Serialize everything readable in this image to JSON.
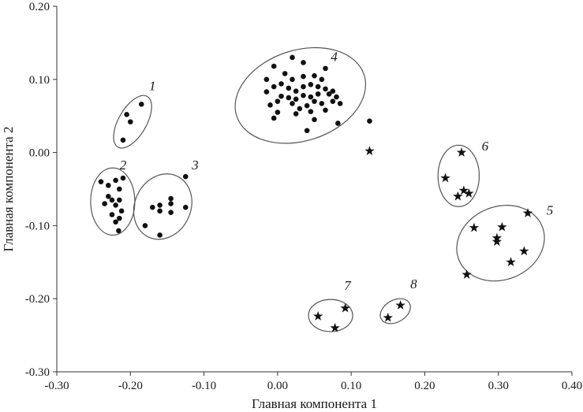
{
  "chart_data": {
    "type": "scatter",
    "xlabel": "Главная компонента 1",
    "ylabel": "Главная компонента 2",
    "xlim": [
      -0.3,
      0.4
    ],
    "ylim": [
      -0.3,
      0.2
    ],
    "xticks": [
      -0.3,
      -0.2,
      -0.1,
      0.0,
      0.1,
      0.2,
      0.3,
      0.4
    ],
    "yticks": [
      -0.3,
      -0.2,
      -0.1,
      0.0,
      0.1,
      0.2
    ],
    "xtick_labels": [
      "-0.30",
      "-0.20",
      "-0.10",
      "0.00",
      "0.10",
      "0.20",
      "0.30",
      "0.40"
    ],
    "ytick_labels": [
      "-0.30",
      "-0.20",
      "-0.10",
      "0.00",
      "0.10",
      "0.20"
    ],
    "grid": false,
    "series": [
      {
        "marker": "circle",
        "points": [
          [
            -0.21,
            0.017
          ],
          [
            -0.2,
            0.042
          ],
          [
            -0.205,
            0.052
          ],
          [
            -0.185,
            0.066
          ],
          [
            -0.24,
            -0.04
          ],
          [
            -0.23,
            -0.045
          ],
          [
            -0.22,
            -0.038
          ],
          [
            -0.21,
            -0.035
          ],
          [
            -0.215,
            -0.05
          ],
          [
            -0.23,
            -0.06
          ],
          [
            -0.225,
            -0.065
          ],
          [
            -0.215,
            -0.065
          ],
          [
            -0.235,
            -0.07
          ],
          [
            -0.22,
            -0.072
          ],
          [
            -0.212,
            -0.08
          ],
          [
            -0.225,
            -0.085
          ],
          [
            -0.215,
            -0.09
          ],
          [
            -0.22,
            -0.095
          ],
          [
            -0.216,
            -0.107
          ],
          [
            -0.125,
            -0.033
          ],
          [
            -0.145,
            -0.063
          ],
          [
            -0.145,
            -0.07
          ],
          [
            -0.16,
            -0.072
          ],
          [
            -0.17,
            -0.075
          ],
          [
            -0.16,
            -0.08
          ],
          [
            -0.125,
            -0.075
          ],
          [
            -0.145,
            -0.082
          ],
          [
            -0.18,
            -0.1
          ],
          [
            -0.16,
            -0.113
          ],
          [
            -0.015,
            0.1
          ],
          [
            -0.005,
            0.118
          ],
          [
            0.02,
            0.13
          ],
          [
            0.035,
            0.123
          ],
          [
            0.01,
            0.108
          ],
          [
            0.02,
            0.1
          ],
          [
            0.035,
            0.104
          ],
          [
            0.05,
            0.105
          ],
          [
            0.06,
            0.1
          ],
          [
            0.065,
            0.115
          ],
          [
            -0.015,
            0.083
          ],
          [
            -0.005,
            0.09
          ],
          [
            0.005,
            0.094
          ],
          [
            0.015,
            0.088
          ],
          [
            0.025,
            0.084
          ],
          [
            0.035,
            0.09
          ],
          [
            0.045,
            0.093
          ],
          [
            0.055,
            0.09
          ],
          [
            0.065,
            0.087
          ],
          [
            0.075,
            0.084
          ],
          [
            0.005,
            0.077
          ],
          [
            0.015,
            0.075
          ],
          [
            0.025,
            0.073
          ],
          [
            0.035,
            0.078
          ],
          [
            0.045,
            0.076
          ],
          [
            0.055,
            0.08
          ],
          [
            0.07,
            0.08
          ],
          [
            0.08,
            0.076
          ],
          [
            -0.01,
            0.065
          ],
          [
            0.0,
            0.07
          ],
          [
            0.02,
            0.067
          ],
          [
            0.03,
            0.06
          ],
          [
            0.04,
            0.064
          ],
          [
            0.05,
            0.07
          ],
          [
            0.06,
            0.067
          ],
          [
            0.075,
            0.07
          ],
          [
            0.085,
            0.067
          ],
          [
            0.0,
            0.055
          ],
          [
            0.025,
            0.053
          ],
          [
            0.045,
            0.056
          ],
          [
            0.065,
            0.058
          ],
          [
            -0.005,
            0.047
          ],
          [
            0.05,
            0.045
          ],
          [
            0.082,
            0.04
          ],
          [
            0.04,
            0.03
          ],
          [
            0.125,
            0.043
          ]
        ]
      },
      {
        "marker": "star",
        "points": [
          [
            0.125,
            0.002
          ],
          [
            0.25,
            0.0
          ],
          [
            0.228,
            -0.035
          ],
          [
            0.253,
            -0.052
          ],
          [
            0.26,
            -0.056
          ],
          [
            0.245,
            -0.06
          ],
          [
            0.34,
            -0.083
          ],
          [
            0.267,
            -0.103
          ],
          [
            0.305,
            -0.102
          ],
          [
            0.298,
            -0.117
          ],
          [
            0.298,
            -0.122
          ],
          [
            0.335,
            -0.135
          ],
          [
            0.317,
            -0.15
          ],
          [
            0.257,
            -0.167
          ],
          [
            0.055,
            -0.224
          ],
          [
            0.092,
            -0.213
          ],
          [
            0.078,
            -0.24
          ],
          [
            0.15,
            -0.226
          ],
          [
            0.167,
            -0.209
          ]
        ]
      }
    ],
    "clusters": [
      {
        "label": "1",
        "cx": -0.197,
        "cy": 0.042,
        "rx": 0.019,
        "ry": 0.04,
        "rotation": 30,
        "label_at": [
          -0.17,
          0.085
        ]
      },
      {
        "label": "2",
        "cx": -0.224,
        "cy": -0.067,
        "rx": 0.03,
        "ry": 0.046,
        "rotation": 0,
        "label_at": [
          -0.21,
          -0.023
        ]
      },
      {
        "label": "3",
        "cx": -0.156,
        "cy": -0.074,
        "rx": 0.038,
        "ry": 0.046,
        "rotation": 25,
        "label_at": [
          -0.112,
          -0.023
        ]
      },
      {
        "label": "4",
        "cx": 0.031,
        "cy": 0.078,
        "rx": 0.091,
        "ry": 0.062,
        "rotation": -18,
        "label_at": [
          0.077,
          0.125
        ]
      },
      {
        "label": "5",
        "cx": 0.303,
        "cy": -0.124,
        "rx": 0.061,
        "ry": 0.05,
        "rotation": -22,
        "label_at": [
          0.37,
          -0.085
        ]
      },
      {
        "label": "6",
        "cx": 0.246,
        "cy": -0.032,
        "rx": 0.028,
        "ry": 0.042,
        "rotation": 0,
        "label_at": [
          0.282,
          0.003
        ]
      },
      {
        "label": "7",
        "cx": 0.072,
        "cy": -0.223,
        "rx": 0.03,
        "ry": 0.022,
        "rotation": 0,
        "label_at": [
          0.095,
          -0.188
        ]
      },
      {
        "label": "8",
        "cx": 0.16,
        "cy": -0.217,
        "rx": 0.022,
        "ry": 0.015,
        "rotation": -30,
        "label_at": [
          0.185,
          -0.186
        ]
      }
    ]
  }
}
